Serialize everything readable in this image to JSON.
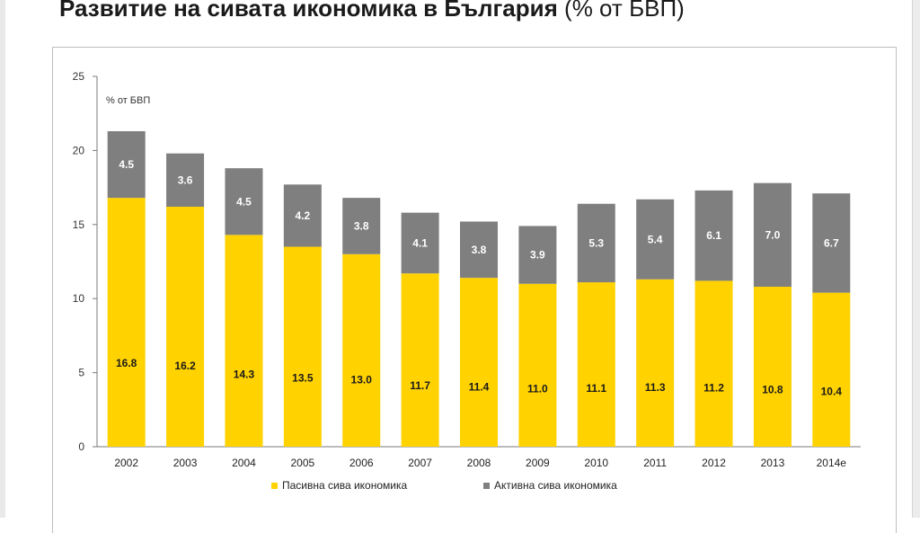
{
  "title": {
    "main": "Развитие на сивата икономика в България",
    "unit": "(% от БВП)"
  },
  "chart_data": {
    "type": "bar",
    "stacked": true,
    "title": "Развитие на сивата икономика в България (% от БВП)",
    "ylabel": "% от БВП",
    "xlabel": "",
    "ylim": [
      0,
      25
    ],
    "yticks": [
      0,
      5,
      10,
      15,
      20,
      25
    ],
    "categories": [
      "2002",
      "2003",
      "2004",
      "2005",
      "2006",
      "2007",
      "2008",
      "2009",
      "2010",
      "2011",
      "2012",
      "2013",
      "2014е"
    ],
    "series": [
      {
        "name": "Пасивна сива икономика",
        "color": "#ffd200",
        "values": [
          16.8,
          16.2,
          14.3,
          13.5,
          13.0,
          11.7,
          11.4,
          11.0,
          11.1,
          11.3,
          11.2,
          10.8,
          10.4
        ]
      },
      {
        "name": "Активна сива икономика",
        "color": "#7f7f7f",
        "values": [
          4.5,
          3.6,
          4.5,
          4.2,
          3.8,
          4.1,
          3.8,
          3.9,
          5.3,
          5.4,
          6.1,
          7.0,
          6.7
        ]
      }
    ],
    "legend_position": "bottom"
  }
}
